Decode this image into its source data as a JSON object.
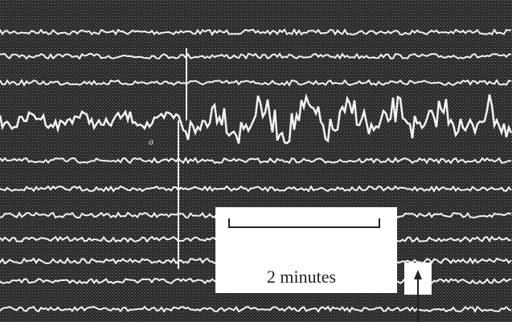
{
  "scale_label": "2 minutes",
  "trace_marker": "a"
}
